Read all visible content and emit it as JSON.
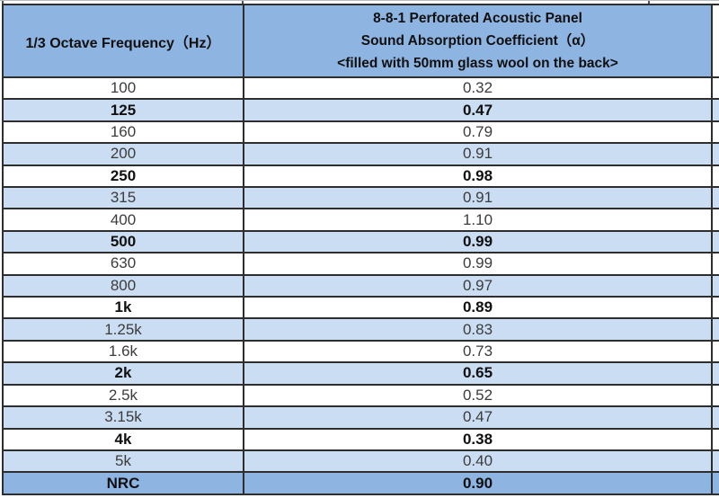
{
  "table": {
    "header": {
      "freq_label": "1/3 Octave Frequency（Hz）",
      "coef_lines": [
        "8-8-1 Perforated Acoustic Panel",
        "Sound Absorption Coefficient（α）",
        "<filled with 50mm glass wool on the back>"
      ]
    },
    "rows": [
      {
        "freq": "100",
        "coef": "0.32",
        "shade": "white",
        "bold": false
      },
      {
        "freq": "125",
        "coef": "0.47",
        "shade": "blue",
        "bold": true
      },
      {
        "freq": "160",
        "coef": "0.79",
        "shade": "white",
        "bold": false
      },
      {
        "freq": "200",
        "coef": "0.91",
        "shade": "blue",
        "bold": false
      },
      {
        "freq": "250",
        "coef": "0.98",
        "shade": "white",
        "bold": true
      },
      {
        "freq": "315",
        "coef": "0.91",
        "shade": "blue",
        "bold": false
      },
      {
        "freq": "400",
        "coef": "1.10",
        "shade": "white",
        "bold": false
      },
      {
        "freq": "500",
        "coef": "0.99",
        "shade": "blue",
        "bold": true
      },
      {
        "freq": "630",
        "coef": "0.99",
        "shade": "white",
        "bold": false
      },
      {
        "freq": "800",
        "coef": "0.97",
        "shade": "blue",
        "bold": false
      },
      {
        "freq": "1k",
        "coef": "0.89",
        "shade": "white",
        "bold": true
      },
      {
        "freq": "1.25k",
        "coef": "0.83",
        "shade": "blue",
        "bold": false
      },
      {
        "freq": "1.6k",
        "coef": "0.73",
        "shade": "white",
        "bold": false
      },
      {
        "freq": "2k",
        "coef": "0.65",
        "shade": "blue",
        "bold": true
      },
      {
        "freq": "2.5k",
        "coef": "0.52",
        "shade": "white",
        "bold": false
      },
      {
        "freq": "3.15k",
        "coef": "0.47",
        "shade": "blue",
        "bold": false
      },
      {
        "freq": "4k",
        "coef": "0.38",
        "shade": "white",
        "bold": true
      },
      {
        "freq": "5k",
        "coef": "0.40",
        "shade": "blue",
        "bold": false
      },
      {
        "freq": "NRC",
        "coef": "0.90",
        "shade": "dark",
        "bold": true
      }
    ]
  },
  "colors": {
    "accent_blue": "#8EB4E2",
    "stripe_blue": "#CBDDF2",
    "row_white": "#FFFFFF",
    "grid_border": "#2E2E2E",
    "text_regular": "#3C3C3C",
    "text_bold": "#101010"
  }
}
